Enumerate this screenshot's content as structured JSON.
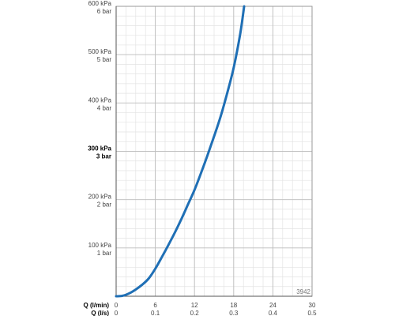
{
  "chart_data": {
    "type": "line",
    "title": "",
    "xlabel": "Q (l/min)",
    "x2label": "Q (l/s)",
    "ylabel": "",
    "xlim": [
      0,
      30
    ],
    "ylim": [
      0,
      600
    ],
    "x_ticks": [
      0,
      6,
      12,
      18,
      24,
      30
    ],
    "x2_ticks": [
      "0",
      "0.1",
      "0.2",
      "0.3",
      "0.4",
      "0.5"
    ],
    "y_ticks": [
      {
        "value": 100,
        "kpa": "100 kPa",
        "bar": "1 bar",
        "bold": false
      },
      {
        "value": 200,
        "kpa": "200 kPa",
        "bar": "2 bar",
        "bold": false
      },
      {
        "value": 300,
        "kpa": "300 kPa",
        "bar": "3 bar",
        "bold": true
      },
      {
        "value": 400,
        "kpa": "400 kPa",
        "bar": "4 bar",
        "bold": false
      },
      {
        "value": 500,
        "kpa": "500 kPa",
        "bar": "5 bar",
        "bold": false
      },
      {
        "value": 600,
        "kpa": "600 kPa",
        "bar": "6 bar",
        "bold": false
      }
    ],
    "grid": true,
    "series": [
      {
        "color": "#1f6fb5",
        "x": [
          0,
          1,
          2,
          3,
          4,
          5,
          6,
          7,
          8,
          9,
          10,
          11,
          12,
          13,
          14,
          15,
          16,
          17,
          18,
          19,
          19.6
        ],
        "y": [
          0,
          1,
          6,
          14,
          24,
          37,
          57,
          81,
          106,
          132,
          160,
          190,
          220,
          255,
          292,
          331,
          372,
          420,
          473,
          543,
          600
        ]
      }
    ],
    "annotations": [
      "3942"
    ]
  }
}
